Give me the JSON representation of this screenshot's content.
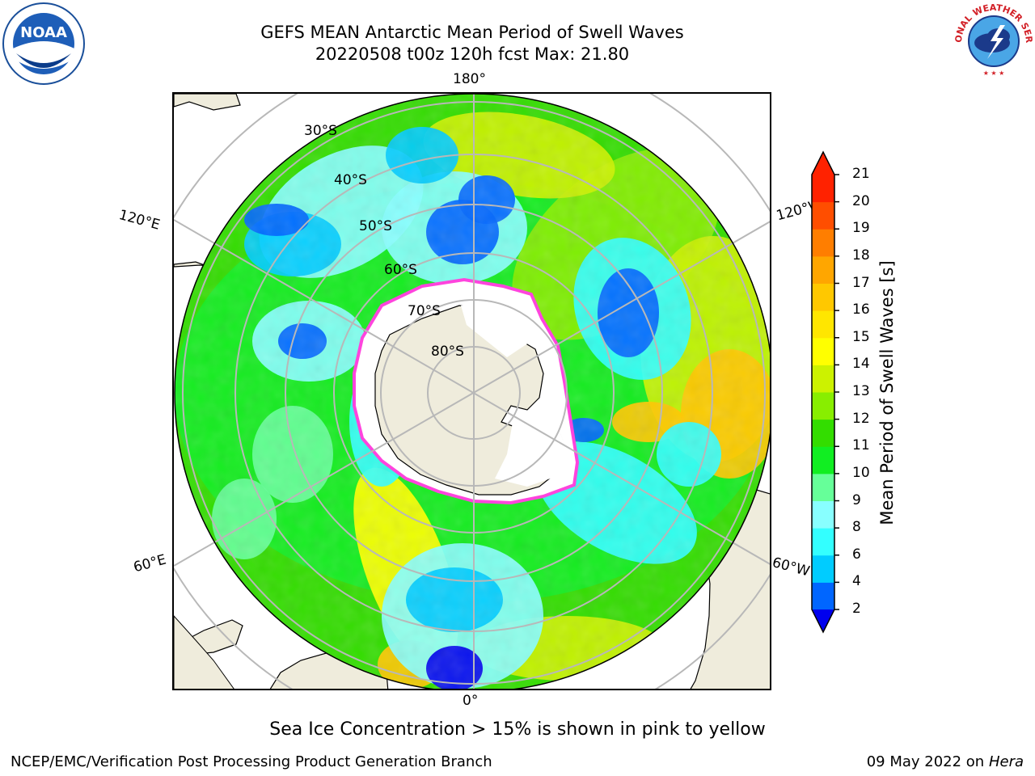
{
  "header": {
    "title_line1": "GEFS MEAN Antarctic Mean Period of Swell Waves",
    "title_line2": "20220508 t00z 120h fcst   Max: 21.80"
  },
  "logos": {
    "left": "NOAA",
    "right": "NATIONAL WEATHER SERVICE"
  },
  "map": {
    "projection": "south-polar-stereographic",
    "longitude_labels": {
      "top": "180°",
      "bottom": "0°",
      "left_upper": "120°E",
      "left_lower": "60°E",
      "right_upper": "120°W",
      "right_lower": "60°W"
    },
    "latitude_labels": [
      "30°S",
      "40°S",
      "50°S",
      "60°S",
      "70°S",
      "80°S"
    ],
    "colors": {
      "land": "#efecdc",
      "ice_shelf": "#ffffff",
      "ice_edge": "#ff44dd",
      "grid": "#b8b8b8"
    }
  },
  "colorbar": {
    "label": "Mean Period of Swell Waves [s]",
    "ticks": [
      "2",
      "4",
      "6",
      "8",
      "9",
      "10",
      "11",
      "12",
      "13",
      "14",
      "15",
      "16",
      "17",
      "18",
      "19",
      "20",
      "21"
    ],
    "colors": [
      "#0000ee",
      "#0066ff",
      "#00ccff",
      "#33ffff",
      "#88ffff",
      "#66ff99",
      "#11ee22",
      "#33dd00",
      "#88ee00",
      "#ccf200",
      "#ffff00",
      "#ffe600",
      "#ffc800",
      "#ffa600",
      "#ff7e00",
      "#ff4e00",
      "#ff2200"
    ],
    "under_color": "#0000ee",
    "over_color": "#ff2200"
  },
  "footer": {
    "note": "Sea Ice Concentration > 15% is shown in pink to yellow",
    "branch": "NCEP/EMC/Verification Post Processing Product Generation Branch",
    "date": "09 May 2022 on",
    "machine": "Hera"
  }
}
